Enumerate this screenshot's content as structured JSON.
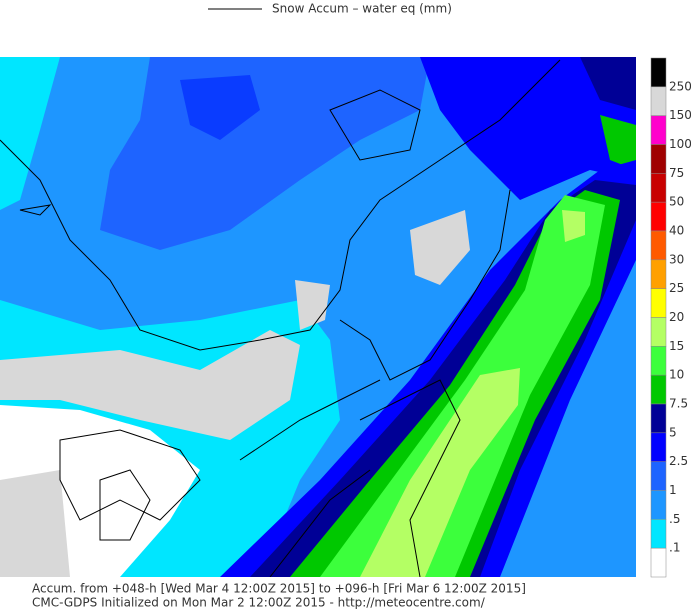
{
  "header": {
    "title": "Snow Accum – water eq (mm)"
  },
  "colorbar": {
    "labels": [
      "250",
      "150",
      "100",
      "75",
      "50",
      "40",
      "30",
      "25",
      "20",
      "15",
      "10",
      "7.5",
      "5",
      "2.5",
      "1",
      ".5",
      ".1"
    ],
    "colors": [
      "#000000",
      "#d8d8d8",
      "#ff00cc",
      "#a00000",
      "#c80000",
      "#ff0000",
      "#ff5a00",
      "#ffa000",
      "#ffff00",
      "#b4ff64",
      "#3cff3c",
      "#00c800",
      "#000096",
      "#0000ff",
      "#1e64ff",
      "#1e96ff",
      "#00e6ff",
      "#ffffff"
    ]
  },
  "footer": {
    "line1": "Accum. from +048-h [Wed Mar 4 12:00Z 2015] to +096-h [Fri Mar 6 12:00Z 2015]",
    "line2": "CMC-GDPS Initialized on Mon Mar 2 12:00Z 2015 - http://meteocentre.com/"
  }
}
